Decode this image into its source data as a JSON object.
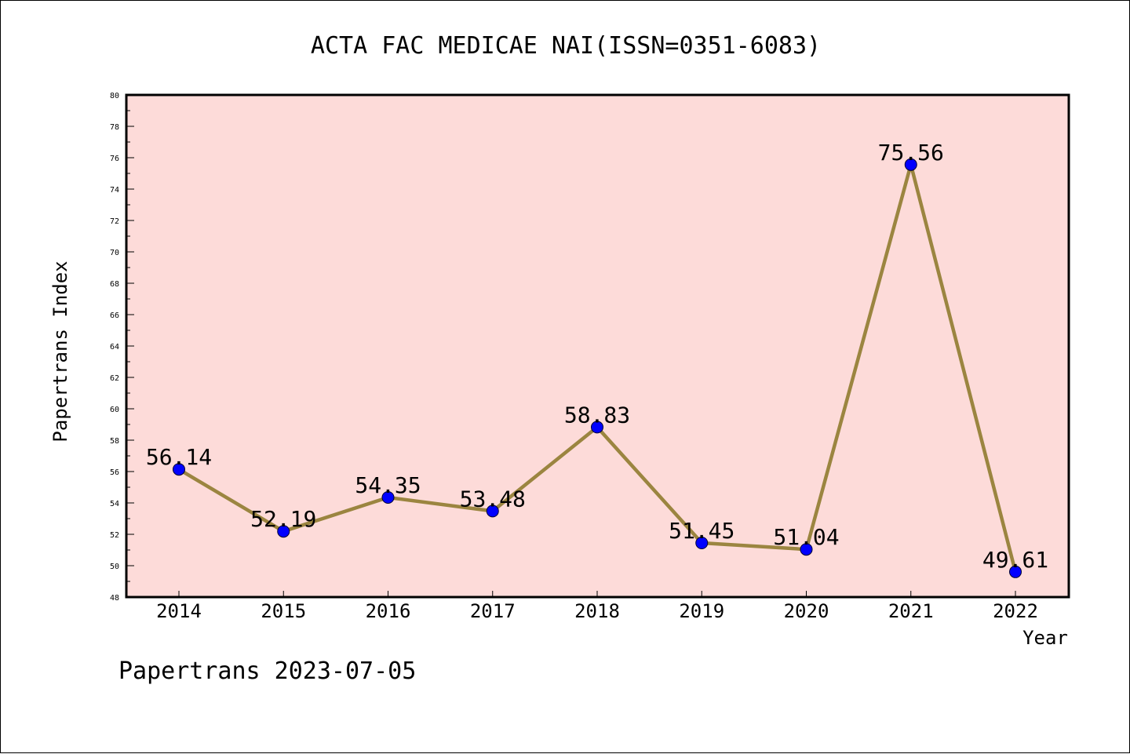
{
  "chart_data": {
    "type": "line",
    "title": "ACTA FAC MEDICAE NAI(ISSN=0351-6083)",
    "xlabel": "Year",
    "ylabel": "Papertrans Index",
    "footer": "Papertrans 2023-07-05",
    "categories": [
      "2014",
      "2015",
      "2016",
      "2017",
      "2018",
      "2019",
      "2020",
      "2021",
      "2022"
    ],
    "series": [
      {
        "values": [
          56.14,
          52.19,
          54.35,
          53.48,
          58.83,
          51.45,
          51.04,
          75.56,
          49.61
        ],
        "data_labels": [
          "56.14",
          "52.19",
          "54.35",
          "53.48",
          "58.83",
          "51.45",
          "51.04",
          "75.56",
          "49.61"
        ]
      }
    ],
    "ylim": [
      48,
      80
    ],
    "yticks": [
      "48",
      "50",
      "52",
      "54",
      "56",
      "58",
      "60",
      "62",
      "64",
      "66",
      "68",
      "70",
      "72",
      "74",
      "76",
      "78",
      "80"
    ],
    "grid": false,
    "legend": "none",
    "colors": {
      "plot_background": "#fddbd9",
      "line": "#9b8540",
      "marker": "#0000ff",
      "marker_edge": "#000033"
    }
  }
}
